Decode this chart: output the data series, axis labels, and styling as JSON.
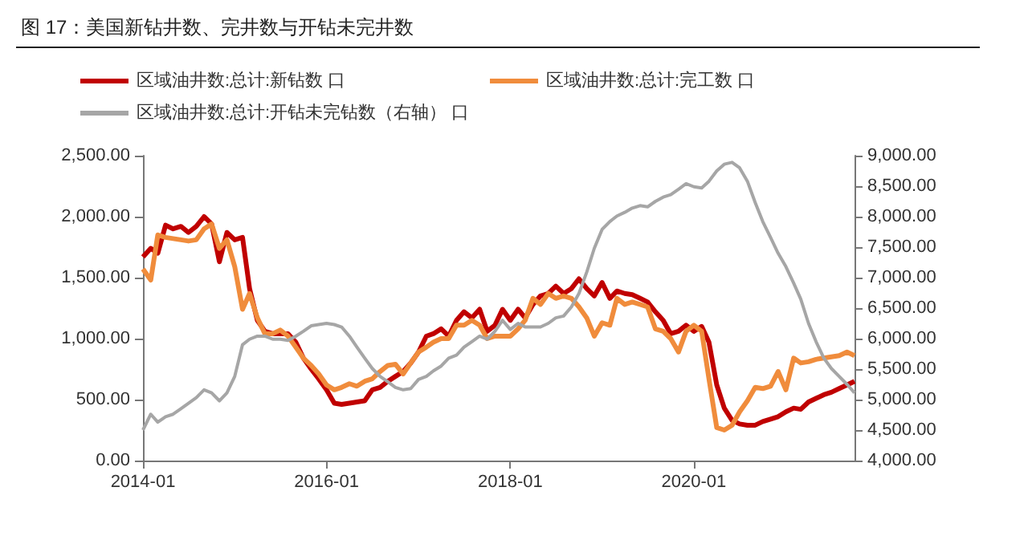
{
  "chart_data": {
    "type": "line",
    "title": "图 17：美国新钻井数、完井数与开钻未完井数",
    "x": [
      "2014-01",
      "2014-02",
      "2014-03",
      "2014-04",
      "2014-05",
      "2014-06",
      "2014-07",
      "2014-08",
      "2014-09",
      "2014-10",
      "2014-11",
      "2014-12",
      "2015-01",
      "2015-02",
      "2015-03",
      "2015-04",
      "2015-05",
      "2015-06",
      "2015-07",
      "2015-08",
      "2015-09",
      "2015-10",
      "2015-11",
      "2015-12",
      "2016-01",
      "2016-02",
      "2016-03",
      "2016-04",
      "2016-05",
      "2016-06",
      "2016-07",
      "2016-08",
      "2016-09",
      "2016-10",
      "2016-11",
      "2016-12",
      "2017-01",
      "2017-02",
      "2017-03",
      "2017-04",
      "2017-05",
      "2017-06",
      "2017-07",
      "2017-08",
      "2017-09",
      "2017-10",
      "2017-11",
      "2017-12",
      "2018-01",
      "2018-02",
      "2018-03",
      "2018-04",
      "2018-05",
      "2018-06",
      "2018-07",
      "2018-08",
      "2018-09",
      "2018-10",
      "2018-11",
      "2018-12",
      "2019-01",
      "2019-02",
      "2019-03",
      "2019-04",
      "2019-05",
      "2019-06",
      "2019-07",
      "2019-08",
      "2019-09",
      "2019-10",
      "2019-11",
      "2019-12",
      "2020-01",
      "2020-02",
      "2020-03",
      "2020-04",
      "2020-05",
      "2020-06",
      "2020-07",
      "2020-08",
      "2020-09",
      "2020-10",
      "2020-11",
      "2020-12",
      "2021-01",
      "2021-02",
      "2021-03",
      "2021-04",
      "2021-05",
      "2021-06",
      "2021-07",
      "2021-08",
      "2021-09",
      "2021-10"
    ],
    "series": [
      {
        "name": "区域油井数:总计:新钻数 口",
        "color": "#c00000",
        "values": [
          1670,
          1740,
          1700,
          1930,
          1900,
          1920,
          1870,
          1920,
          2000,
          1940,
          1630,
          1870,
          1810,
          1830,
          1410,
          1150,
          1060,
          1040,
          1040,
          1040,
          970,
          840,
          750,
          670,
          580,
          470,
          460,
          470,
          480,
          490,
          580,
          600,
          650,
          690,
          730,
          800,
          890,
          1020,
          1040,
          1080,
          1020,
          1150,
          1220,
          1170,
          1240,
          1060,
          1110,
          1240,
          1150,
          1240,
          1170,
          1280,
          1350,
          1370,
          1430,
          1370,
          1410,
          1490,
          1410,
          1350,
          1460,
          1330,
          1390,
          1370,
          1360,
          1330,
          1300,
          1220,
          1150,
          1040,
          1060,
          1110,
          1060,
          1100,
          970,
          620,
          430,
          330,
          300,
          290,
          290,
          320,
          340,
          360,
          400,
          430,
          420,
          480,
          510,
          540,
          560,
          590,
          620,
          650
        ]
      },
      {
        "name": "区域油井数:总计:完工数 口",
        "color": "#f08c3c",
        "values": [
          1570,
          1480,
          1850,
          1830,
          1820,
          1810,
          1800,
          1810,
          1900,
          1940,
          1740,
          1810,
          1590,
          1240,
          1370,
          1170,
          1040,
          1040,
          1070,
          1020,
          930,
          840,
          780,
          710,
          620,
          580,
          600,
          630,
          610,
          650,
          670,
          730,
          780,
          790,
          710,
          800,
          890,
          930,
          970,
          1000,
          1000,
          1110,
          1110,
          1150,
          1110,
          1000,
          1020,
          1020,
          1020,
          1080,
          1150,
          1330,
          1280,
          1370,
          1330,
          1350,
          1330,
          1260,
          1170,
          1020,
          1130,
          1110,
          1330,
          1280,
          1300,
          1280,
          1260,
          1080,
          1060,
          1000,
          890,
          1060,
          1110,
          1060,
          670,
          270,
          250,
          290,
          400,
          490,
          600,
          590,
          610,
          730,
          580,
          840,
          800,
          810,
          830,
          840,
          850,
          860,
          890,
          860
        ]
      },
      {
        "name": "区域油井数:总计:开钻未完钻数（右轴） 口",
        "color": "#a6a6a6",
        "axis": "y2",
        "values": [
          4500,
          4760,
          4630,
          4720,
          4760,
          4850,
          4940,
          5030,
          5160,
          5110,
          4980,
          5110,
          5380,
          5900,
          5990,
          6040,
          6040,
          5990,
          5990,
          5970,
          6040,
          6120,
          6210,
          6230,
          6250,
          6230,
          6190,
          6040,
          5860,
          5680,
          5510,
          5380,
          5290,
          5200,
          5160,
          5180,
          5330,
          5380,
          5470,
          5550,
          5680,
          5730,
          5860,
          5950,
          6040,
          5990,
          6120,
          6300,
          6150,
          6250,
          6190,
          6190,
          6190,
          6250,
          6340,
          6370,
          6520,
          6740,
          7090,
          7480,
          7790,
          7920,
          8010,
          8070,
          8140,
          8180,
          8160,
          8250,
          8320,
          8360,
          8450,
          8540,
          8490,
          8470,
          8580,
          8750,
          8860,
          8890,
          8800,
          8580,
          8230,
          7920,
          7660,
          7400,
          7180,
          6910,
          6650,
          6250,
          5950,
          5680,
          5510,
          5380,
          5250,
          5110
        ]
      }
    ],
    "xlim": [
      "2014-01",
      "2021-10"
    ],
    "xticks": [
      "2014-01",
      "2016-01",
      "2018-01",
      "2020-01"
    ],
    "ylim": [
      0,
      2500
    ],
    "yticks": [
      {
        "value": 0,
        "label": "0.00"
      },
      {
        "value": 500,
        "label": "500.00"
      },
      {
        "value": 1000,
        "label": "1,000.00"
      },
      {
        "value": 1500,
        "label": "1,500.00"
      },
      {
        "value": 2000,
        "label": "2,000.00"
      },
      {
        "value": 2500,
        "label": "2,500.00"
      }
    ],
    "y2lim": [
      4000,
      9000
    ],
    "y2ticks": [
      {
        "value": 4000,
        "label": "4,000.00"
      },
      {
        "value": 4500,
        "label": "4,500.00"
      },
      {
        "value": 5000,
        "label": "5,000.00"
      },
      {
        "value": 5500,
        "label": "5,500.00"
      },
      {
        "value": 6000,
        "label": "6,000.00"
      },
      {
        "value": 6500,
        "label": "6,500.00"
      },
      {
        "value": 7000,
        "label": "7,000.00"
      },
      {
        "value": 7500,
        "label": "7,500.00"
      },
      {
        "value": 8000,
        "label": "8,000.00"
      },
      {
        "value": 8500,
        "label": "8,500.00"
      },
      {
        "value": 9000,
        "label": "9,000.00"
      }
    ],
    "grid": false,
    "legend": "top",
    "marker": "none",
    "line_style": "solid"
  }
}
